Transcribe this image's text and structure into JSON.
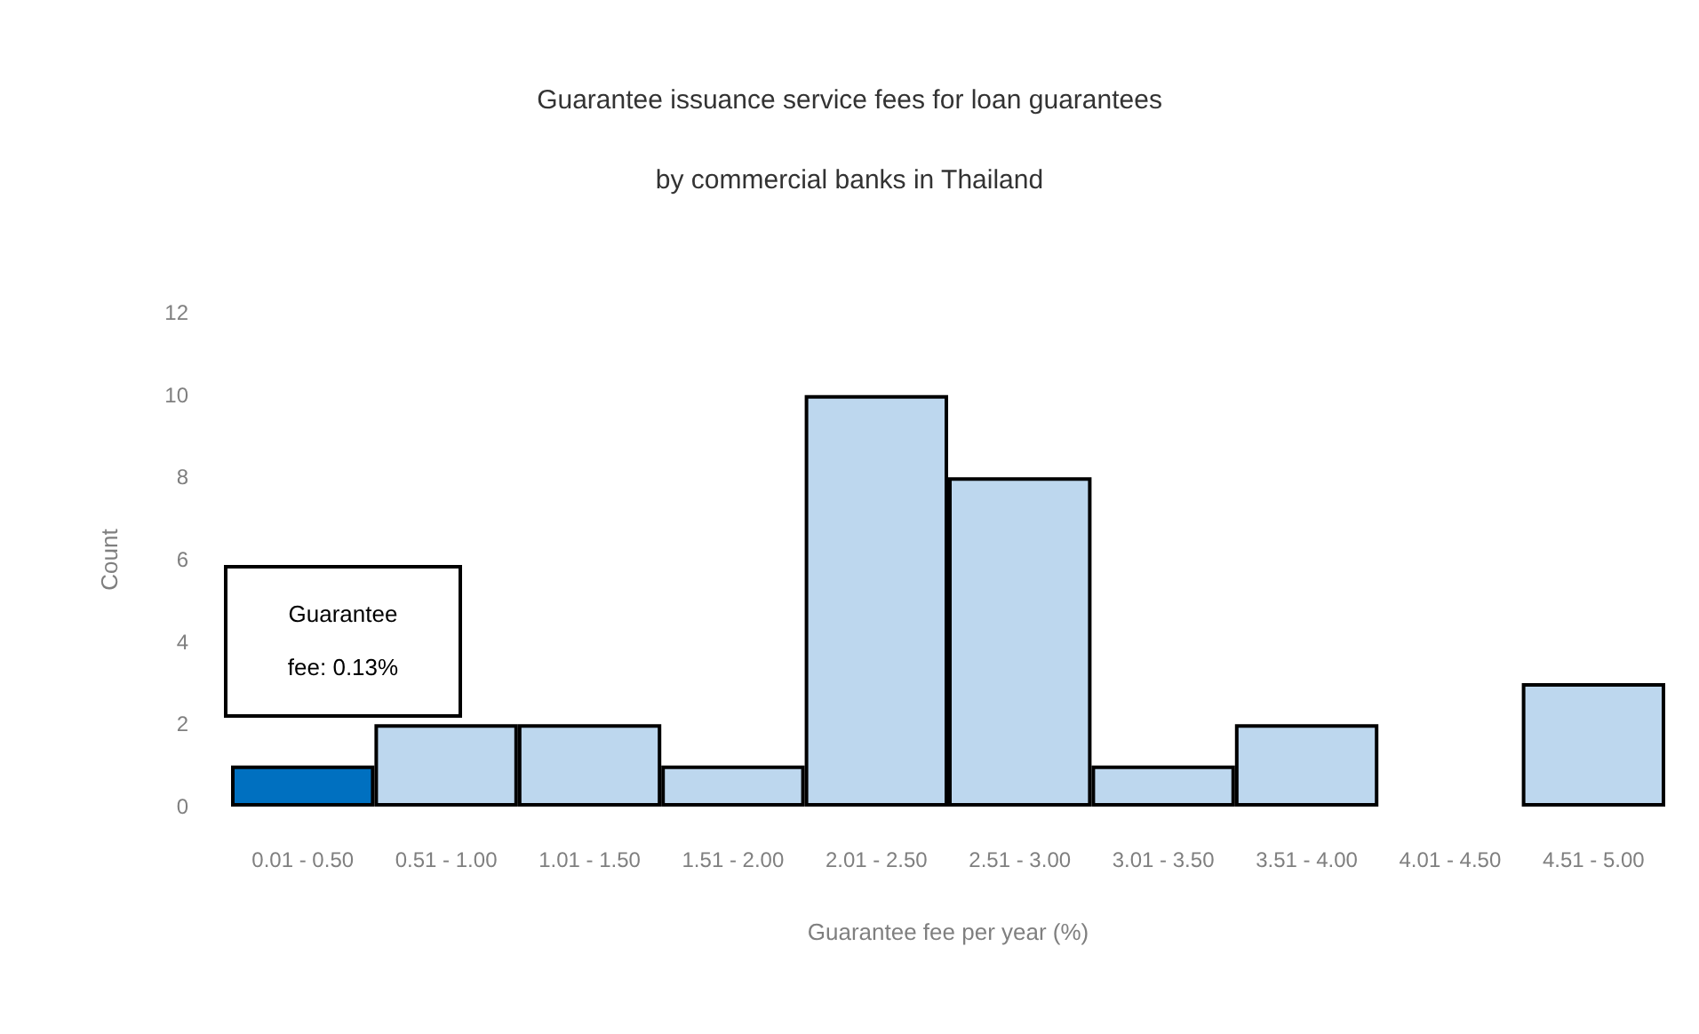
{
  "chart_data": {
    "type": "bar",
    "title": "Guarantee issuance service fees for loan guarantees",
    "subtitle": "by commercial banks in Thailand",
    "xlabel": "Guarantee fee per year (%)",
    "ylabel": "Count",
    "categories": [
      "0.01 - 0.50",
      "0.51 - 1.00",
      "1.01 - 1.50",
      "1.51 - 2.00",
      "2.01 - 2.50",
      "2.51 - 3.00",
      "3.01 - 3.50",
      "3.51 - 4.00",
      "4.01 - 4.50",
      "4.51 - 5.00"
    ],
    "values": [
      1,
      2,
      2,
      1,
      10,
      8,
      1,
      2,
      0,
      3
    ],
    "colors": [
      "#0070c0",
      "#bdd7ee",
      "#bdd7ee",
      "#bdd7ee",
      "#bdd7ee",
      "#bdd7ee",
      "#bdd7ee",
      "#bdd7ee",
      "#bdd7ee",
      "#bdd7ee"
    ],
    "ylim": [
      0,
      12
    ],
    "yticks": [
      0,
      2,
      4,
      6,
      8,
      10,
      12
    ],
    "grid": false,
    "annotations": [
      "Guarantee\nfee: 0.13%"
    ]
  }
}
